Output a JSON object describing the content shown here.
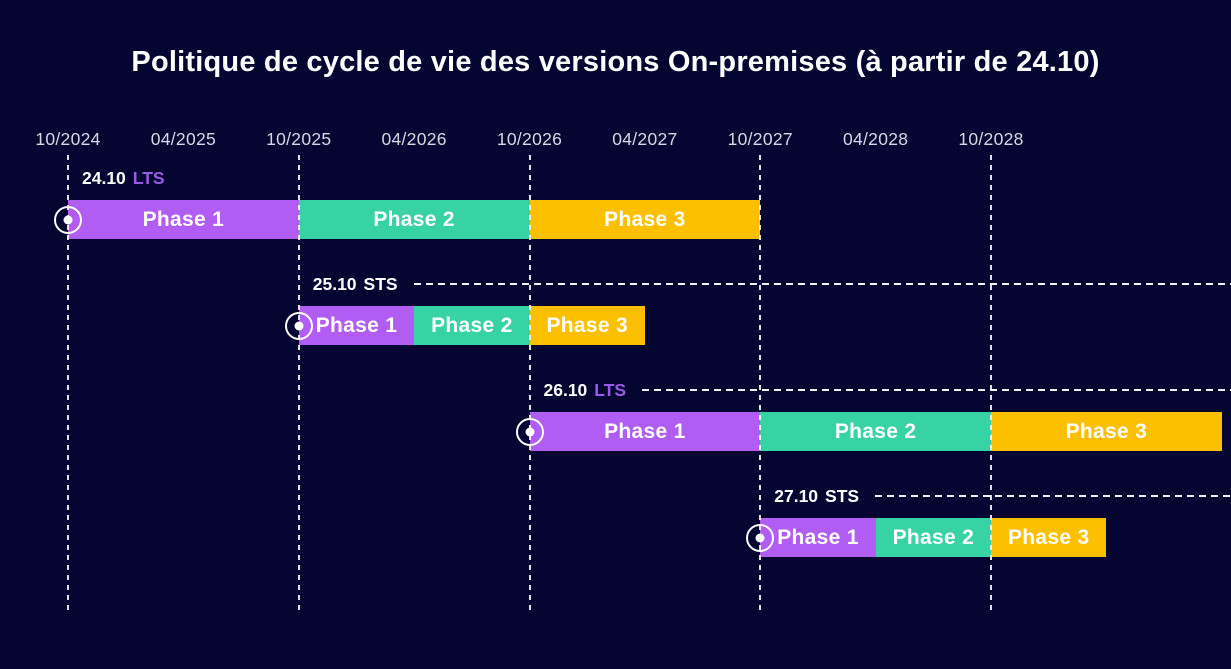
{
  "title": "Politique de cycle de vie des versions On-premises (à partir de 24.10)",
  "colors": {
    "background": "#050531",
    "title_text": "#ffffff",
    "axis_text": "#d8d8e2",
    "bar_text": "#ffffff",
    "grid": "#ffffff",
    "phase1": "#b15cf2",
    "phase2": "#38d3a5",
    "phase3": "#fdc000",
    "type_colors": {
      "LTS": "#9a5ae8",
      "STS": "#ffffff"
    }
  },
  "chart_data": {
    "type": "gantt",
    "title": "Politique de cycle de vie des versions On-premises (à partir de 24.10)",
    "x_axis": {
      "ticks": [
        "10/2024",
        "04/2025",
        "10/2025",
        "04/2026",
        "10/2026",
        "04/2027",
        "10/2027",
        "04/2028",
        "10/2028"
      ],
      "gridlines_at": [
        "10/2024",
        "10/2025",
        "10/2026",
        "10/2027",
        "10/2028"
      ],
      "grid_style": "vertical-dashed",
      "range": [
        "10/2024",
        "10/2029"
      ]
    },
    "rows": [
      {
        "version": "24.10",
        "release_type": "LTS",
        "has_leader_line": false,
        "phases": [
          {
            "label": "Phase 1",
            "start": "10/2024",
            "end": "10/2025",
            "color_key": "phase1"
          },
          {
            "label": "Phase 2",
            "start": "10/2025",
            "end": "10/2026",
            "color_key": "phase2"
          },
          {
            "label": "Phase 3",
            "start": "10/2026",
            "end": "10/2027",
            "color_key": "phase3"
          }
        ]
      },
      {
        "version": "25.10",
        "release_type": "STS",
        "has_leader_line": true,
        "phases": [
          {
            "label": "Phase 1",
            "start": "10/2025",
            "end": "04/2026",
            "color_key": "phase1"
          },
          {
            "label": "Phase 2",
            "start": "04/2026",
            "end": "10/2026",
            "color_key": "phase2"
          },
          {
            "label": "Phase 3",
            "start": "10/2026",
            "end": "04/2027",
            "color_key": "phase3"
          }
        ]
      },
      {
        "version": "26.10",
        "release_type": "LTS",
        "has_leader_line": true,
        "phases": [
          {
            "label": "Phase 1",
            "start": "10/2026",
            "end": "10/2027",
            "color_key": "phase1"
          },
          {
            "label": "Phase 2",
            "start": "10/2027",
            "end": "10/2028",
            "color_key": "phase2"
          },
          {
            "label": "Phase 3",
            "start": "10/2028",
            "end": "10/2029",
            "color_key": "phase3"
          }
        ]
      },
      {
        "version": "27.10",
        "release_type": "STS",
        "has_leader_line": true,
        "phases": [
          {
            "label": "Phase 1",
            "start": "10/2027",
            "end": "04/2028",
            "color_key": "phase1"
          },
          {
            "label": "Phase 2",
            "start": "04/2028",
            "end": "10/2028",
            "color_key": "phase2"
          },
          {
            "label": "Phase 3",
            "start": "10/2028",
            "end": "04/2029",
            "color_key": "phase3"
          }
        ]
      }
    ]
  }
}
